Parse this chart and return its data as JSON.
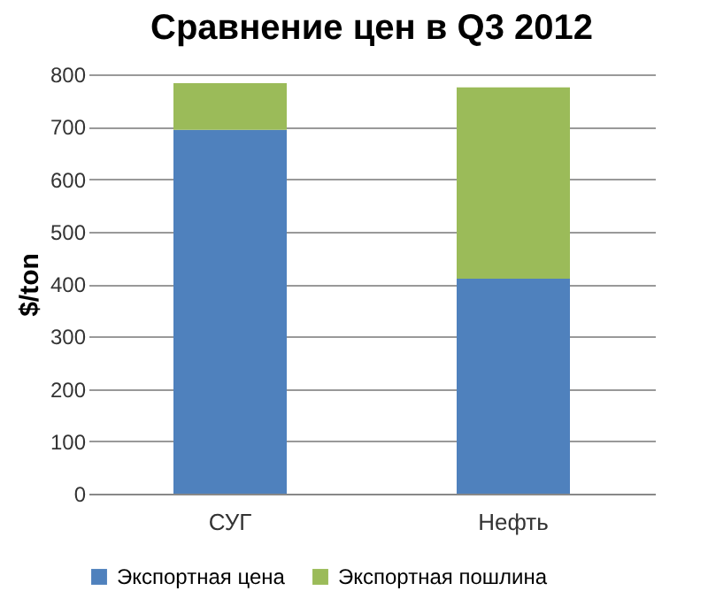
{
  "chart_data": {
    "type": "bar",
    "title": "Сравнение цен в Q3 2012",
    "ylabel": "$/ton",
    "categories": [
      "СУГ",
      "Нефть"
    ],
    "stacked": true,
    "series": [
      {
        "name": "Экспортная цена",
        "color": "#4f81bd",
        "values": [
          694,
          410
        ]
      },
      {
        "name": "Экспортная пошлина",
        "color": "#9bbb59",
        "values": [
          89,
          365
        ]
      }
    ],
    "ylim": [
      0,
      800
    ],
    "yticks": [
      0,
      100,
      200,
      300,
      400,
      500,
      600,
      700,
      800
    ],
    "grid": "y",
    "legend": "bottom"
  }
}
